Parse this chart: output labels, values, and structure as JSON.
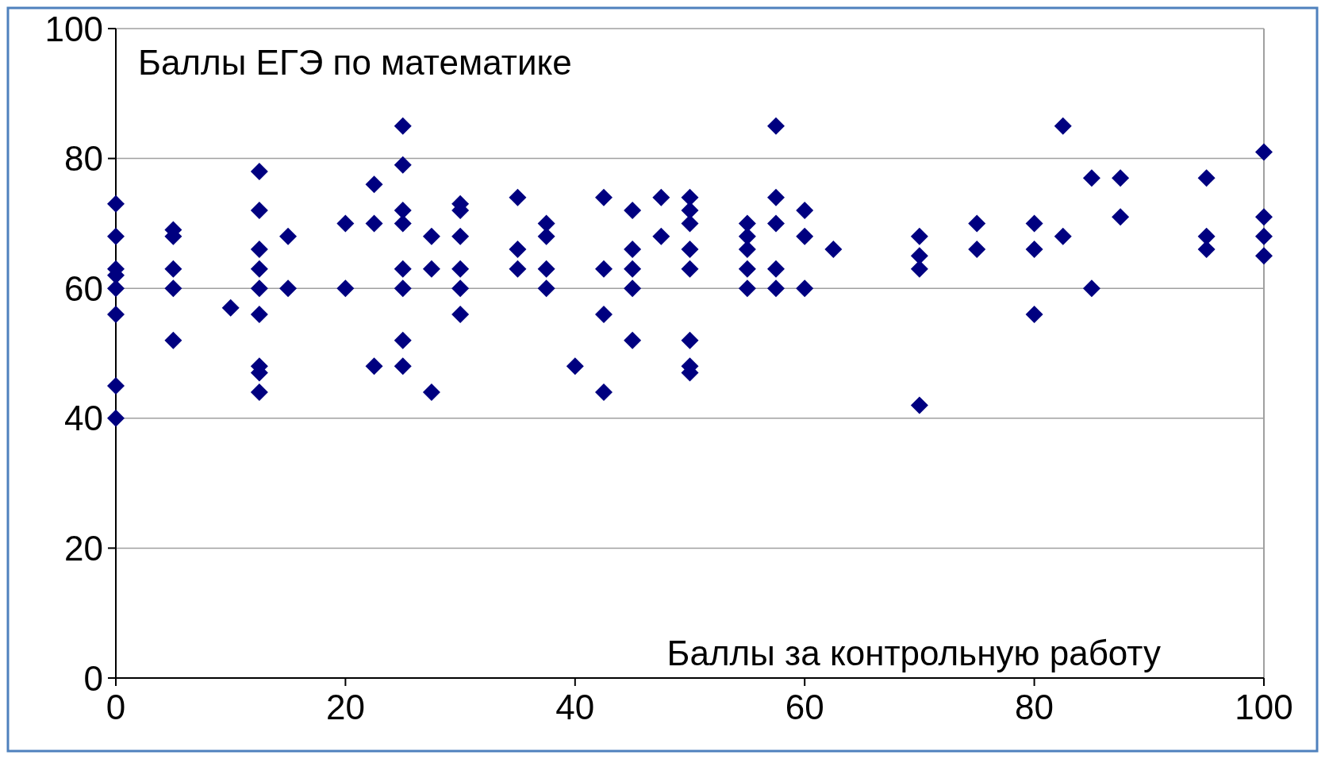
{
  "chart_data": {
    "type": "scatter",
    "title": "Баллы ЕГЭ по математике",
    "xlabel": "Баллы за контрольную работу",
    "x": [
      0,
      0,
      0,
      0,
      0,
      0,
      0,
      0,
      5,
      5,
      5,
      5,
      5,
      10,
      12.5,
      12.5,
      12.5,
      12.5,
      12.5,
      12.5,
      12.5,
      12.5,
      12.5,
      15,
      15,
      20,
      20,
      22.5,
      22.5,
      22.5,
      25,
      25,
      25,
      25,
      25,
      25,
      25,
      25,
      27.5,
      27.5,
      27.5,
      30,
      30,
      30,
      30,
      30,
      30,
      35,
      35,
      35,
      37.5,
      37.5,
      37.5,
      37.5,
      40,
      42.5,
      42.5,
      42.5,
      42.5,
      45,
      45,
      45,
      45,
      45,
      47.5,
      47.5,
      50,
      50,
      50,
      50,
      50,
      50,
      50,
      50,
      55,
      55,
      55,
      55,
      55,
      57.5,
      57.5,
      57.5,
      57.5,
      57.5,
      60,
      60,
      60,
      62.5,
      70,
      70,
      70,
      70,
      75,
      75,
      80,
      80,
      80,
      82.5,
      82.5,
      85,
      85,
      87.5,
      87.5,
      95,
      95,
      95,
      100,
      100,
      100,
      100
    ],
    "values": [
      73,
      68,
      63,
      62,
      60,
      56,
      45,
      40,
      69,
      68,
      63,
      60,
      52,
      57,
      78,
      72,
      66,
      63,
      60,
      56,
      48,
      47,
      44,
      68,
      60,
      70,
      60,
      76,
      70,
      48,
      85,
      79,
      72,
      70,
      63,
      60,
      52,
      48,
      68,
      63,
      44,
      73,
      72,
      68,
      63,
      60,
      56,
      74,
      66,
      63,
      70,
      68,
      63,
      60,
      48,
      74,
      63,
      56,
      44,
      72,
      66,
      63,
      60,
      52,
      74,
      68,
      74,
      72,
      70,
      66,
      63,
      52,
      48,
      47,
      70,
      68,
      66,
      63,
      60,
      85,
      74,
      70,
      63,
      60,
      72,
      68,
      60,
      66,
      68,
      65,
      63,
      42,
      70,
      66,
      70,
      66,
      56,
      85,
      68,
      77,
      60,
      77,
      71,
      77,
      68,
      66,
      81,
      71,
      68,
      65
    ],
    "color": "#000080",
    "marker": "diamond",
    "xlim": [
      0,
      100
    ],
    "xticks": [
      0,
      20,
      40,
      60,
      80,
      100
    ],
    "ylim": [
      0,
      100
    ],
    "yticks": [
      0,
      20,
      40,
      60,
      80,
      100
    ],
    "grid": "y"
  }
}
